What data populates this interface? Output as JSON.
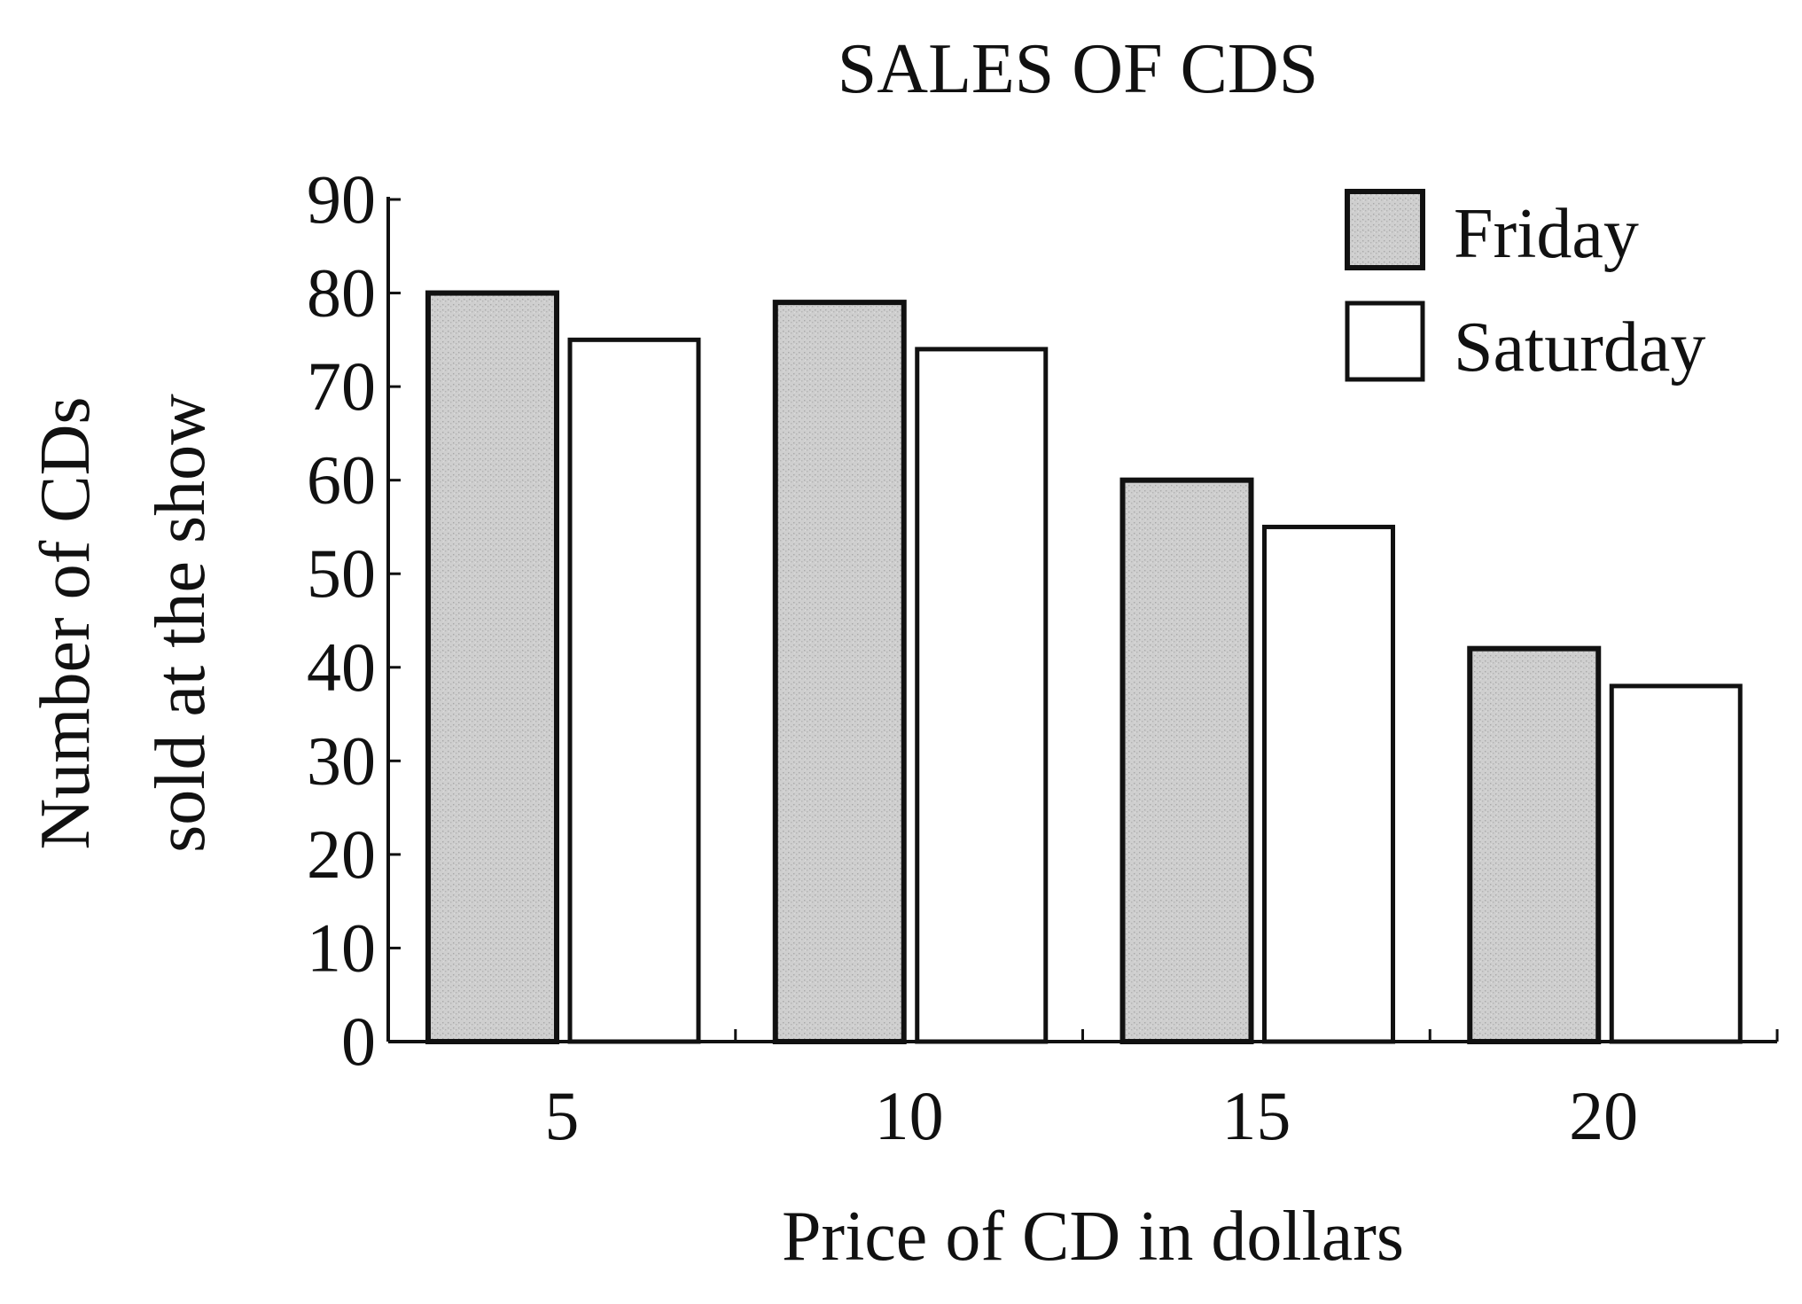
{
  "chart_data": {
    "type": "bar",
    "title": "SALES OF CDS",
    "xlabel": "Price of CD in dollars",
    "ylabel_lines": [
      "Number of CDs",
      "sold at the show"
    ],
    "categories": [
      "5",
      "10",
      "15",
      "20"
    ],
    "series": [
      {
        "name": "Friday",
        "values": [
          80,
          79,
          60,
          42
        ],
        "color": "#c9c9c9",
        "edge": "#111111"
      },
      {
        "name": "Saturday",
        "values": [
          75,
          74,
          55,
          38
        ],
        "color": "#ffffff",
        "edge": "#111111"
      }
    ],
    "ylim": [
      0,
      90
    ],
    "yticks": [
      0,
      10,
      20,
      30,
      40,
      50,
      60,
      70,
      80,
      90
    ],
    "grid": false,
    "legend_position": "top-right"
  }
}
